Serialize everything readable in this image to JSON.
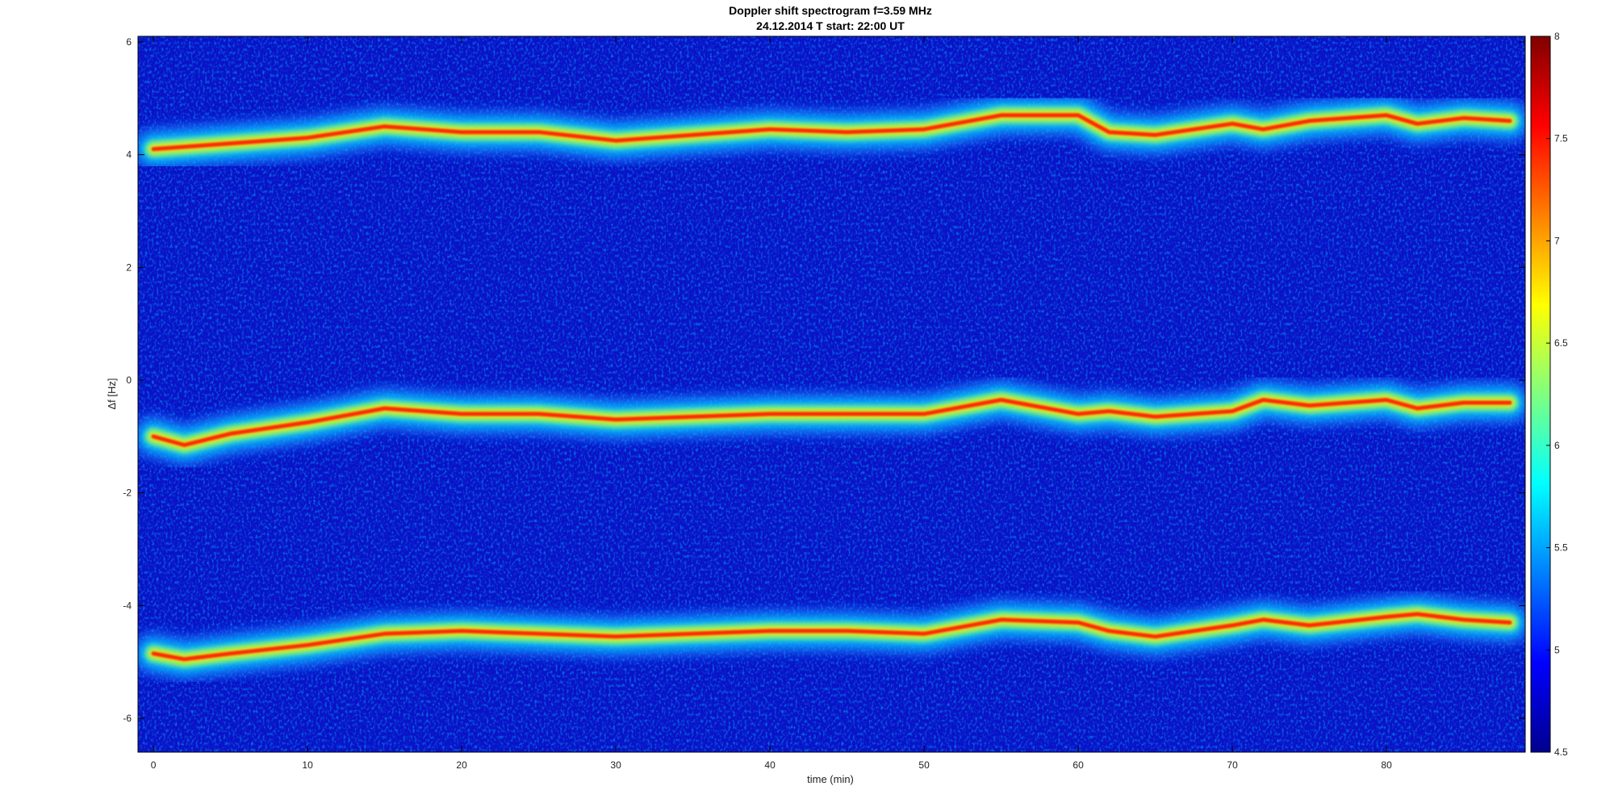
{
  "chart_data": {
    "type": "heatmap",
    "title_line1": "Doppler shift spectrogram f=3.59 MHz",
    "title_line2": "24.12.2014    T start: 22:00 UT",
    "xlabel": "time (min)",
    "ylabel": "Δf [Hz]",
    "xlim": [
      -1,
      89
    ],
    "ylim": [
      -6.6,
      6.1
    ],
    "x_ticks": [
      0,
      10,
      20,
      30,
      40,
      50,
      60,
      70,
      80
    ],
    "y_ticks": [
      6,
      4,
      2,
      0,
      -2,
      -4,
      -6
    ],
    "colorbar": {
      "clim": [
        4.5,
        8
      ],
      "ticks": [
        8,
        7.5,
        7,
        6.5,
        6,
        5.5,
        5,
        4.5
      ],
      "colormap": "jet"
    },
    "traces": [
      {
        "name": "upper",
        "x": [
          0,
          5,
          10,
          15,
          20,
          25,
          30,
          35,
          40,
          45,
          50,
          55,
          60,
          62,
          65,
          70,
          72,
          75,
          80,
          82,
          85,
          88
        ],
        "y": [
          4.1,
          4.2,
          4.3,
          4.5,
          4.4,
          4.4,
          4.25,
          4.35,
          4.45,
          4.4,
          4.45,
          4.7,
          4.7,
          4.4,
          4.35,
          4.55,
          4.45,
          4.6,
          4.7,
          4.55,
          4.65,
          4.6
        ]
      },
      {
        "name": "middle",
        "x": [
          0,
          2,
          5,
          10,
          15,
          20,
          25,
          30,
          35,
          40,
          45,
          50,
          55,
          60,
          62,
          65,
          70,
          72,
          75,
          80,
          82,
          85,
          88
        ],
        "y": [
          -1.0,
          -1.15,
          -0.95,
          -0.75,
          -0.5,
          -0.6,
          -0.6,
          -0.7,
          -0.65,
          -0.6,
          -0.6,
          -0.6,
          -0.35,
          -0.6,
          -0.55,
          -0.65,
          -0.55,
          -0.35,
          -0.45,
          -0.35,
          -0.5,
          -0.4,
          -0.4
        ]
      },
      {
        "name": "lower",
        "x": [
          0,
          2,
          5,
          10,
          15,
          20,
          25,
          30,
          35,
          40,
          45,
          50,
          55,
          60,
          62,
          65,
          70,
          72,
          75,
          80,
          82,
          85,
          88
        ],
        "y": [
          -4.85,
          -4.95,
          -4.85,
          -4.7,
          -4.5,
          -4.45,
          -4.5,
          -4.55,
          -4.5,
          -4.45,
          -4.45,
          -4.5,
          -4.25,
          -4.3,
          -4.45,
          -4.55,
          -4.35,
          -4.25,
          -4.35,
          -4.2,
          -4.15,
          -4.25,
          -4.3
        ]
      }
    ],
    "background_level": 4.8,
    "peak_level": 7.9
  }
}
